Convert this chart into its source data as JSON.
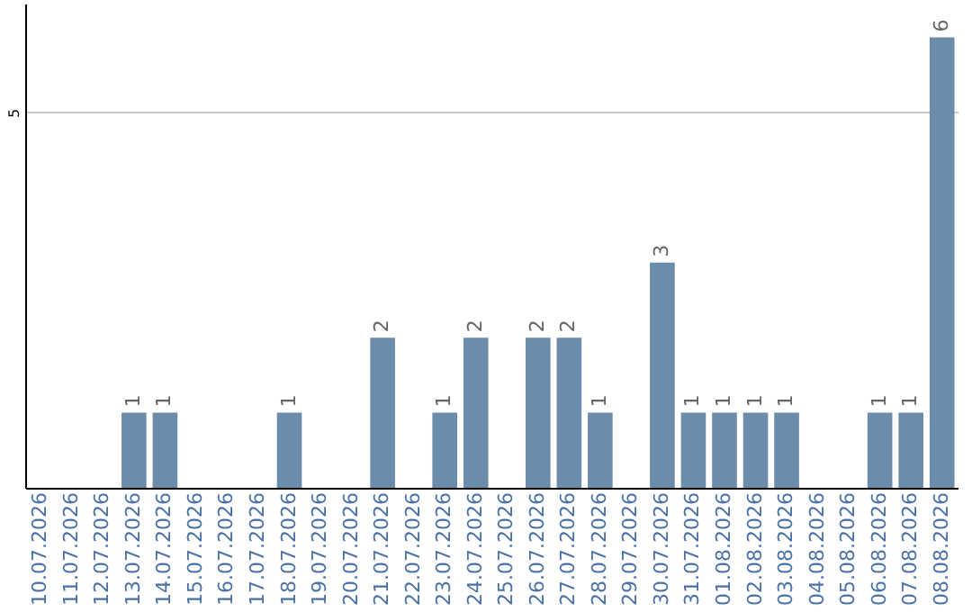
{
  "chart_data": {
    "type": "bar",
    "categories": [
      "10.07.2026",
      "11.07.2026",
      "12.07.2026",
      "13.07.2026",
      "14.07.2026",
      "15.07.2026",
      "16.07.2026",
      "17.07.2026",
      "18.07.2026",
      "19.07.2026",
      "20.07.2026",
      "21.07.2026",
      "22.07.2026",
      "23.07.2026",
      "24.07.2026",
      "25.07.2026",
      "26.07.2026",
      "27.07.2026",
      "28.07.2026",
      "29.07.2026",
      "30.07.2026",
      "31.07.2026",
      "01.08.2026",
      "02.08.2026",
      "03.08.2026",
      "04.08.2026",
      "05.08.2026",
      "06.08.2026",
      "07.08.2026",
      "08.08.2026"
    ],
    "values": [
      0,
      0,
      0,
      1,
      1,
      0,
      0,
      0,
      1,
      0,
      0,
      2,
      0,
      1,
      2,
      0,
      2,
      2,
      1,
      0,
      3,
      1,
      1,
      1,
      1,
      0,
      0,
      1,
      1,
      6
    ],
    "value_labels": [
      null,
      null,
      null,
      "1",
      "1",
      null,
      null,
      null,
      "1",
      null,
      null,
      "2",
      null,
      "1",
      "2",
      null,
      "2",
      "2",
      "1",
      null,
      "3",
      "1",
      "1",
      "1",
      "1",
      null,
      null,
      "1",
      "1",
      "6"
    ],
    "color": "#6b8cab",
    "ylim": [
      0,
      6.45
    ],
    "yticks": [
      5
    ],
    "grid": "y"
  }
}
